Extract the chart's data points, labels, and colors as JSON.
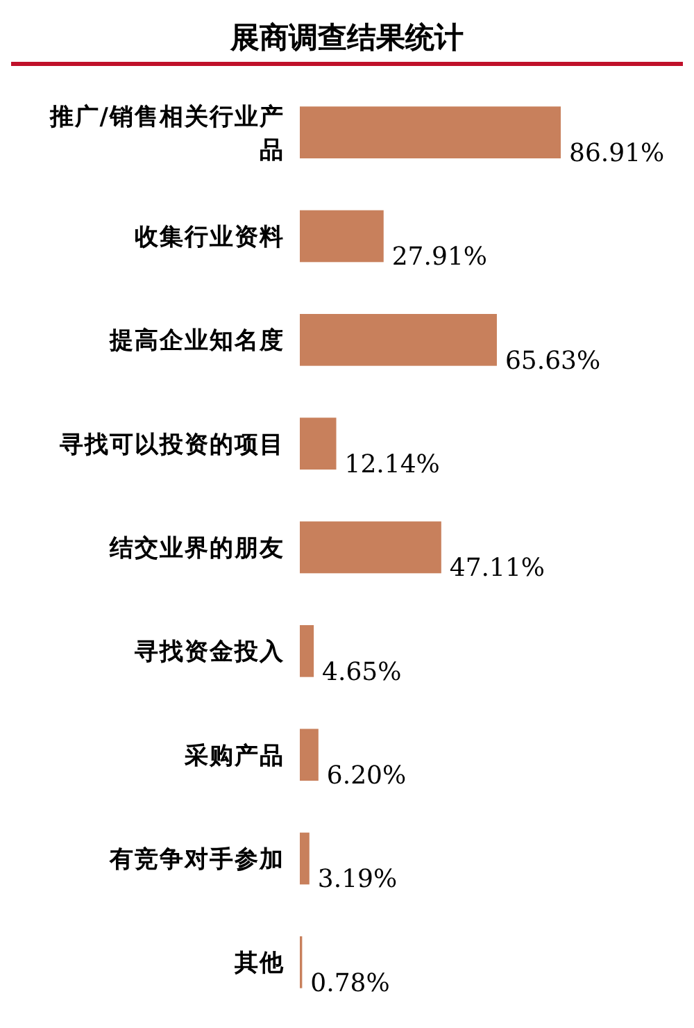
{
  "chart_data": {
    "type": "bar",
    "orientation": "horizontal",
    "title": "展商调查结果统计",
    "categories": [
      "推广/销售相关行业产品",
      "收集行业资料",
      "提高企业知名度",
      "寻找可以投资的项目",
      "结交业界的朋友",
      "寻找资金投入",
      "采购产品",
      "有竞争对手参加",
      "其他"
    ],
    "values": [
      86.91,
      27.91,
      65.63,
      12.14,
      47.11,
      4.65,
      6.2,
      3.19,
      0.78
    ],
    "value_labels": [
      "86.91%",
      "27.91%",
      "65.63%",
      "12.14%",
      "47.11%",
      "4.65%",
      "6.20%",
      "3.19%",
      "0.78%"
    ],
    "color": "#c8805c"
  }
}
